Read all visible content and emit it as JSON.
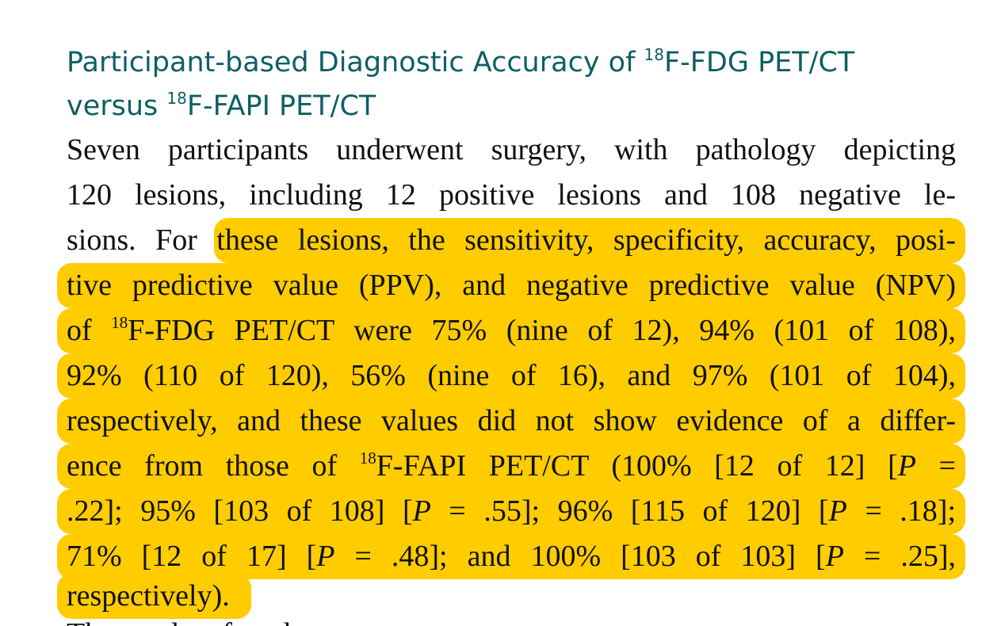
{
  "heading": {
    "line1_pre": "Participant-based Diagnostic Accuracy of ",
    "line1_sup": "18",
    "line1_post": "F-FDG PET/CT",
    "line2_pre": "versus ",
    "line2_sup": "18",
    "line2_post": "F-FAPI PET/CT"
  },
  "paragraph": {
    "l1": "Seven participants underwent surgery, with pathology depicting",
    "l2": "120 lesions, including 12 positive lesions and 108 negative le-",
    "l3_plain": "sions.",
    "l3_hl": "For these lesions, the sensitivity, specificity, accuracy, posi-",
    "l4": "tive predictive value (PPV), and negative predictive value (NPV)",
    "l5_pre": "of ",
    "l5_sup": "18",
    "l5_post": "F-FDG PET/CT were 75% (nine of 12), 94% (101 of 108),",
    "l6": "92% (110 of 120), 56% (nine of 16), and 97% (101 of 104),",
    "l7": "respectively, and these values did not show evidence of a differ-",
    "l8_pre": "ence from those of ",
    "l8_sup": "18",
    "l8_mid": "F-FAPI PET/CT (100% [12 of 12] [",
    "l8_p": "P",
    "l8_post": " =",
    "l9_a": ".22]; 95% [103 of 108] [",
    "l9_p1": "P",
    "l9_b": " = .55]; 96% [115 of 120] [",
    "l9_p2": "P",
    "l9_c": " = .18];",
    "l10_a": "71% [12 of 17] [",
    "l10_p1": "P",
    "l10_b": " = .48]; and 100% [103 of 103] [",
    "l10_p2": "P",
    "l10_c": " = .25],",
    "l11": "respectively).",
    "cutoff": "The results of ... also ..."
  },
  "colors": {
    "heading": "#0e5f66",
    "highlight": "#ffcc00",
    "text": "#111111"
  }
}
